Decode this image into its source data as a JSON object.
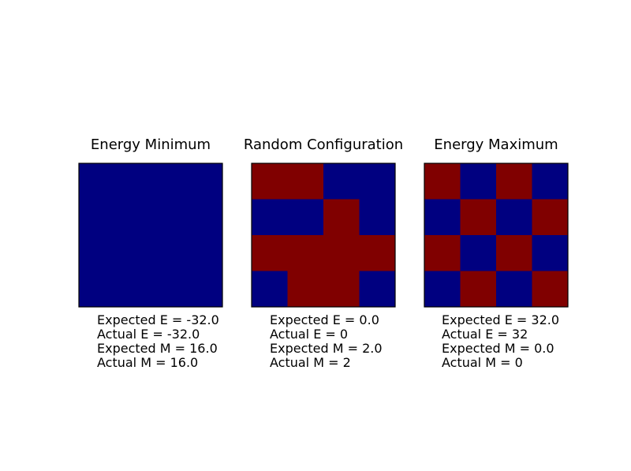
{
  "figure": {
    "colors": {
      "spin_up": "#800000",
      "spin_down": "#000080",
      "frame": "#000000"
    }
  },
  "chart_data": [
    {
      "type": "heatmap",
      "title": "Energy Minimum",
      "grid": [
        [
          -1,
          -1,
          -1,
          -1
        ],
        [
          -1,
          -1,
          -1,
          -1
        ],
        [
          -1,
          -1,
          -1,
          -1
        ],
        [
          -1,
          -1,
          -1,
          -1
        ]
      ],
      "annotations": [
        "Expected E = -32.0",
        "Actual E = -32.0",
        "Expected M = 16.0",
        "Actual M = 16.0"
      ]
    },
    {
      "type": "heatmap",
      "title": "Random Configuration",
      "grid": [
        [
          1,
          1,
          -1,
          -1
        ],
        [
          -1,
          -1,
          1,
          -1
        ],
        [
          1,
          1,
          1,
          1
        ],
        [
          -1,
          1,
          1,
          -1
        ]
      ],
      "annotations": [
        "Expected E = 0.0",
        "Actual E = 0",
        "Expected M = 2.0",
        "Actual M = 2"
      ]
    },
    {
      "type": "heatmap",
      "title": "Energy Maximum",
      "grid": [
        [
          1,
          -1,
          1,
          -1
        ],
        [
          -1,
          1,
          -1,
          1
        ],
        [
          1,
          -1,
          1,
          -1
        ],
        [
          -1,
          1,
          -1,
          1
        ]
      ],
      "annotations": [
        "Expected E = 32.0",
        "Actual E = 32",
        "Expected M = 0.0",
        "Actual M = 0"
      ]
    }
  ]
}
